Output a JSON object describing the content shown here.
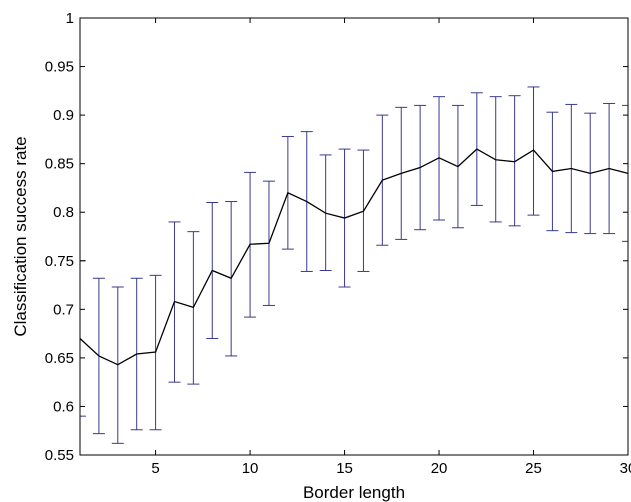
{
  "chart_data": {
    "type": "line",
    "title": "",
    "xlabel": "Border length",
    "ylabel": "Classification success rate",
    "xlim": [
      1,
      30
    ],
    "ylim": [
      0.55,
      1
    ],
    "xticks": [
      5,
      10,
      15,
      20,
      25,
      30
    ],
    "yticks": [
      0.55,
      0.6,
      0.65,
      0.7,
      0.75,
      0.8,
      0.85,
      0.9,
      0.95,
      1
    ],
    "xtick_labels": [
      "5",
      "10",
      "15",
      "20",
      "25",
      "30"
    ],
    "ytick_labels": [
      "0.55",
      "0.6",
      "0.65",
      "0.7",
      "0.75",
      "0.8",
      "0.85",
      "0.9",
      "0.95",
      "1"
    ],
    "grid": false,
    "line_color": "#000000",
    "errorbar_color": "#3a3a8c",
    "series": [
      {
        "x": [
          1,
          2,
          3,
          4,
          5,
          6,
          7,
          8,
          9,
          10,
          11,
          12,
          13,
          14,
          15,
          16,
          17,
          18,
          19,
          20,
          21,
          22,
          23,
          24,
          25,
          26,
          27,
          28,
          29,
          30
        ],
        "y": [
          0.67,
          0.652,
          0.643,
          0.654,
          0.656,
          0.708,
          0.702,
          0.74,
          0.732,
          0.767,
          0.768,
          0.82,
          0.811,
          0.799,
          0.794,
          0.801,
          0.833,
          0.84,
          0.846,
          0.856,
          0.847,
          0.865,
          0.854,
          0.852,
          0.864,
          0.842,
          0.845,
          0.84,
          0.845,
          0.84
        ],
        "err_low": [
          0.59,
          0.572,
          0.562,
          0.576,
          0.576,
          0.625,
          0.623,
          0.67,
          0.652,
          0.692,
          0.704,
          0.762,
          0.739,
          0.74,
          0.723,
          0.739,
          0.766,
          0.772,
          0.782,
          0.792,
          0.784,
          0.807,
          0.79,
          0.786,
          0.797,
          0.781,
          0.779,
          0.778,
          0.778,
          0.77
        ],
        "err_high": [
          0.75,
          0.732,
          0.723,
          0.732,
          0.735,
          0.79,
          0.78,
          0.81,
          0.811,
          0.841,
          0.832,
          0.878,
          0.883,
          0.859,
          0.865,
          0.864,
          0.9,
          0.908,
          0.91,
          0.919,
          0.91,
          0.923,
          0.919,
          0.92,
          0.929,
          0.903,
          0.911,
          0.902,
          0.912,
          0.91
        ]
      }
    ]
  }
}
